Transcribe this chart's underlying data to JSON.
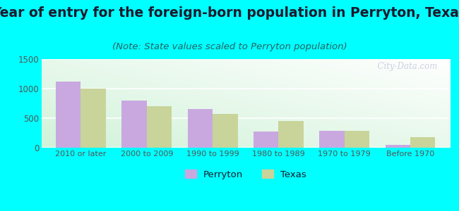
{
  "title": "Year of entry for the foreign-born population in Perryton, Texas",
  "subtitle": "(Note: State values scaled to Perryton population)",
  "categories": [
    "2010 or later",
    "2000 to 2009",
    "1990 to 1999",
    "1980 to 1989",
    "1970 to 1979",
    "Before 1970"
  ],
  "perryton_values": [
    1120,
    795,
    660,
    275,
    290,
    50
  ],
  "texas_values": [
    1005,
    700,
    575,
    450,
    285,
    175
  ],
  "perryton_color": "#c9a8e0",
  "texas_color": "#c8d49a",
  "ylim": [
    0,
    1500
  ],
  "yticks": [
    0,
    500,
    1000,
    1500
  ],
  "background_color": "#00ffff",
  "watermark": "  City-Data.com",
  "bar_width": 0.38,
  "title_fontsize": 13.5,
  "subtitle_fontsize": 9.5,
  "title_color": "#1a1a2e",
  "subtitle_color": "#2a6060",
  "tick_color": "#555555",
  "grid_color": "#dddddd"
}
